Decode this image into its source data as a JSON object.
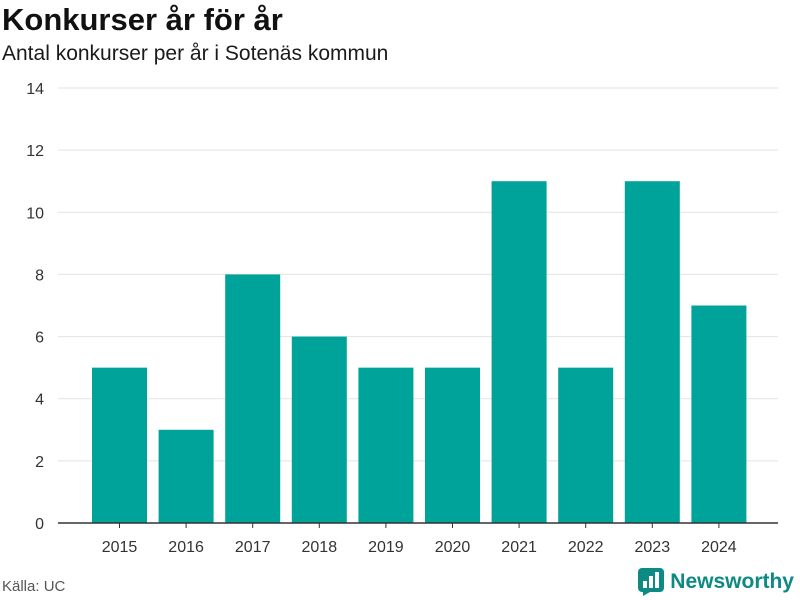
{
  "title": "Konkurser år för år",
  "subtitle": "Antal konkurser per år i Sotenäs kommun",
  "source": "Källa: UC",
  "brand": {
    "name": "Newsworthy",
    "icon": "newsworthy-logo-icon",
    "color": "#0e8a84"
  },
  "colors": {
    "bar": "#00a39a",
    "grid": "#e3e3e3",
    "axis": "#333333",
    "tick_text": "#333333"
  },
  "chart_data": {
    "type": "bar",
    "title": "Konkurser år för år",
    "subtitle": "Antal konkurser per år i Sotenäs kommun",
    "xlabel": "",
    "ylabel": "",
    "categories": [
      "2015",
      "2016",
      "2017",
      "2018",
      "2019",
      "2020",
      "2021",
      "2022",
      "2023",
      "2024"
    ],
    "values": [
      5,
      3,
      8,
      6,
      5,
      5,
      11,
      5,
      11,
      7
    ],
    "ylim": [
      0,
      14
    ],
    "yticks": [
      0,
      2,
      4,
      6,
      8,
      10,
      12,
      14
    ],
    "grid": true,
    "legend": "none"
  }
}
